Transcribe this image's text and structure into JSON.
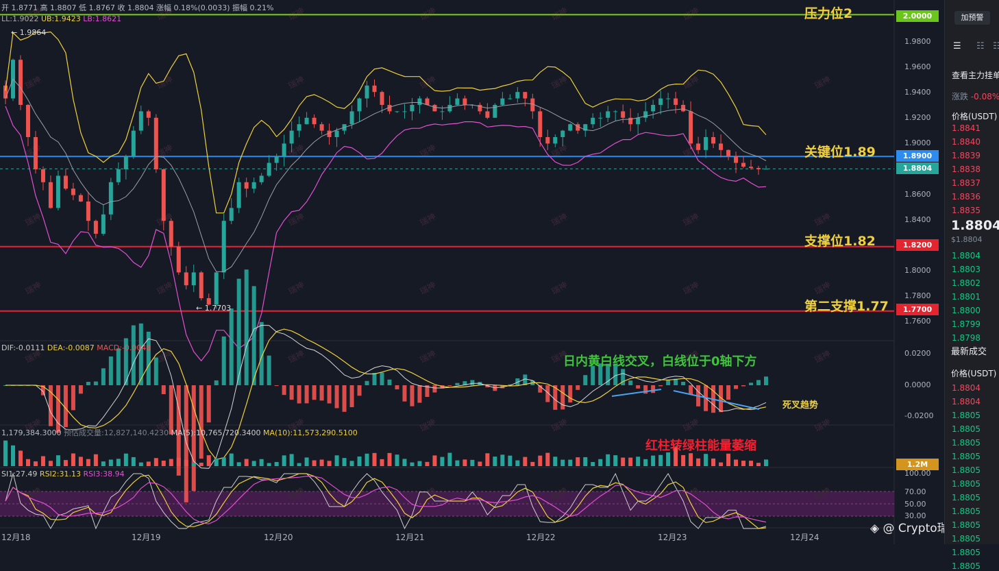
{
  "header": {
    "ohlc": {
      "open_label": "开",
      "open": "1.8771",
      "high_label": "高",
      "high": "1.8807",
      "low_label": "低",
      "low": "1.8767",
      "close_label": "收",
      "close": "1.8804",
      "change_label": "涨幅",
      "change": "0.18%(0.0033)",
      "amp_label": "振幅",
      "amp": "0.21%"
    },
    "boll": {
      "ll": "LL:1.9022",
      "ub": "UB:1.9423",
      "lb": "LB:1.8621"
    },
    "macd": {
      "dif": "DIF:-0.0111",
      "dea": "DEA:-0.0087",
      "macd": "MACD:-0.0048"
    },
    "vol": {
      "vol": "1,179,384.3000",
      "est": "预估成交量:12,827,140.4230",
      "ma5": "MA(5):10,765,720.3400",
      "ma10": "MA(10):11,573,290.5100"
    },
    "rsi": {
      "r1": "SI1:27.49",
      "r2": "RSI2:31.13",
      "r3": "RSI3:38.94"
    }
  },
  "annotations": {
    "resistance2": "压力位2",
    "key": "关键位1.89",
    "support": "支撑位1.82",
    "support2": "第二支撑1.77",
    "macd_note": "日内黄白线交叉，白线位于0轴下方",
    "death_cross": "死叉趋势",
    "vol_note": "红柱转绿柱能量萎缩",
    "high_mark": "← 1.9864",
    "low_mark": "← 1.7703",
    "watermark": "@ Crypto瑞神",
    "wm_small": "瑞神"
  },
  "badges": {
    "r2": "2.0000",
    "key": "1.8900",
    "last": "1.8804",
    "s1": "1.8200",
    "s2": "1.7700",
    "vol": "1.2M"
  },
  "price_axis": [
    "1.9800",
    "1.9600",
    "1.9400",
    "1.9200",
    "1.9000",
    "1.8600",
    "1.8400",
    "1.8000",
    "1.7800",
    "1.7600"
  ],
  "macd_axis": [
    "0.0200",
    "0.0000",
    "-0.0200"
  ],
  "rsi_axis": [
    "100.00",
    "70.00",
    "50.00",
    "30.00"
  ],
  "x_axis": [
    "12月18",
    "12月19",
    "12月20",
    "12月21",
    "12月22",
    "12月23",
    "12月24"
  ],
  "right_panel": {
    "alert_btn": "加预警",
    "view_orders": "查看主力挂单",
    "change_label": "涨跌",
    "change": "-0.08%",
    "price_hdr": "价格(USDT)",
    "asks": [
      "1.8841",
      "1.8840",
      "1.8839",
      "1.8838",
      "1.8837",
      "1.8836",
      "1.8835"
    ],
    "last_big": "1.8804",
    "last_small": "$1.8804",
    "bids": [
      "1.8804",
      "1.8803",
      "1.8802",
      "1.8801",
      "1.8800",
      "1.8799",
      "1.8798"
    ],
    "trades_title": "最新成交",
    "trades_hdr": "价格(USDT)",
    "trades": [
      {
        "p": "1.8804",
        "c": "#f6465d"
      },
      {
        "p": "1.8804",
        "c": "#f6465d"
      },
      {
        "p": "1.8805",
        "c": "#0ecb81"
      },
      {
        "p": "1.8805",
        "c": "#0ecb81"
      },
      {
        "p": "1.8805",
        "c": "#0ecb81"
      },
      {
        "p": "1.8805",
        "c": "#0ecb81"
      },
      {
        "p": "1.8805",
        "c": "#0ecb81"
      },
      {
        "p": "1.8805",
        "c": "#0ecb81"
      },
      {
        "p": "1.8805",
        "c": "#0ecb81"
      },
      {
        "p": "1.8805",
        "c": "#0ecb81"
      },
      {
        "p": "1.8805",
        "c": "#0ecb81"
      },
      {
        "p": "1.8805",
        "c": "#0ecb81"
      },
      {
        "p": "1.8805",
        "c": "#0ecb81"
      },
      {
        "p": "1.8805",
        "c": "#0ecb81"
      }
    ]
  },
  "colors": {
    "up": "#26a69a",
    "down": "#ef5350",
    "yellow": "#f0d03c",
    "magenta": "#e44fd4",
    "grey": "#9a9ea8",
    "blue": "#2c8cf0",
    "red": "#f02030",
    "green": "#7ccc1a"
  },
  "chart_data": {
    "type": "candlestick",
    "levels": [
      {
        "name": "压力位2",
        "y": 2.0
      },
      {
        "name": "关键位1.89",
        "y": 1.89
      },
      {
        "name": "支撑位1.82",
        "y": 1.82
      },
      {
        "name": "第二支撑1.77",
        "y": 1.77
      }
    ],
    "last_price": 1.8804,
    "price_range": [
      1.755,
      2.005
    ],
    "close_path": [
      1.935,
      1.965,
      1.93,
      1.905,
      1.88,
      1.87,
      1.85,
      1.875,
      1.865,
      1.86,
      1.855,
      1.84,
      1.83,
      1.845,
      1.87,
      1.88,
      1.89,
      1.91,
      1.925,
      1.92,
      1.88,
      1.84,
      1.82,
      1.8,
      1.79,
      1.8,
      1.78,
      1.775,
      1.8,
      1.84,
      1.85,
      1.87,
      1.865,
      1.87,
      1.875,
      1.885,
      1.89,
      1.9,
      1.91,
      1.915,
      1.92,
      1.915,
      1.91,
      1.905,
      1.91,
      1.915,
      1.925,
      1.935,
      1.945,
      1.94,
      1.93,
      1.925,
      1.925,
      1.925,
      1.93,
      1.935,
      1.93,
      1.925,
      1.925,
      1.93,
      1.935,
      1.93,
      1.93,
      1.925,
      1.92,
      1.93,
      1.935,
      1.935,
      1.94,
      1.935,
      1.925,
      1.905,
      1.9,
      1.905,
      1.91,
      1.915,
      1.91,
      1.915,
      1.92,
      1.92,
      1.925,
      1.925,
      1.92,
      1.915,
      1.92,
      1.925,
      1.93,
      1.935,
      1.935,
      1.93,
      1.925,
      1.9,
      1.895,
      1.905,
      1.9,
      1.895,
      1.89,
      1.885,
      1.882,
      1.881,
      1.88,
      1.8804
    ],
    "rsi_levels": [
      70,
      50,
      30
    ]
  }
}
